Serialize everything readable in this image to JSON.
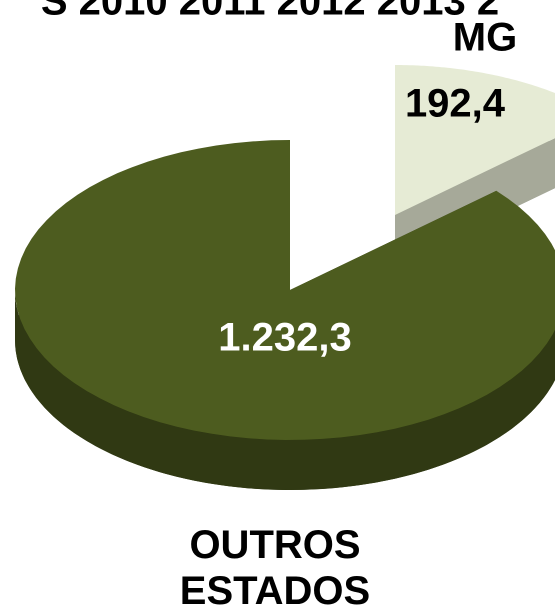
{
  "chart_data": {
    "type": "pie",
    "title": "S 2010 2011 2012 2013 2",
    "categories": [
      "MG",
      "OUTROS ESTADOS"
    ],
    "values": [
      192.4,
      1232.3
    ],
    "value_labels": [
      "192,4",
      "1.232,3"
    ],
    "colors": [
      "#e6ebd5",
      "#4d5c1f"
    ]
  }
}
